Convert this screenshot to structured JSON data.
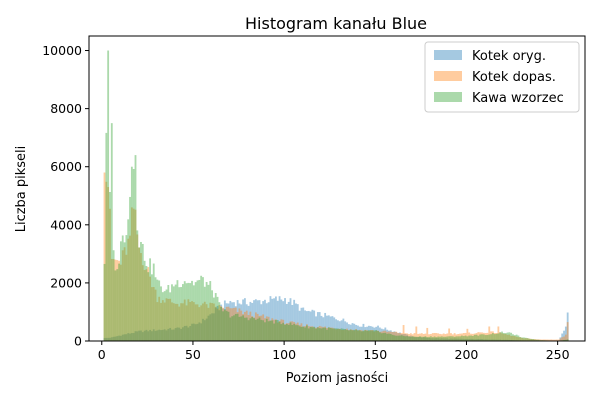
{
  "chart_data": {
    "type": "bar",
    "title": "Histogram kanału Blue",
    "xlabel": "Poziom jasności",
    "ylabel": "Liczba pikseli",
    "xlim": [
      -7,
      265
    ],
    "ylim": [
      0,
      10500
    ],
    "x_ticks": [
      0,
      50,
      100,
      150,
      200,
      250
    ],
    "y_ticks": [
      0,
      2000,
      4000,
      6000,
      8000,
      10000
    ],
    "legend_position": "top-right",
    "grid": false,
    "bins": 256,
    "series": [
      {
        "name": "Kotek oryg.",
        "color": "#1f77b4",
        "opacity": 0.4,
        "anchors": [
          [
            0,
            0
          ],
          [
            1,
            100
          ],
          [
            5,
            120
          ],
          [
            10,
            200
          ],
          [
            20,
            330
          ],
          [
            30,
            380
          ],
          [
            40,
            420
          ],
          [
            50,
            550
          ],
          [
            55,
            700
          ],
          [
            60,
            950
          ],
          [
            65,
            1200
          ],
          [
            70,
            1350
          ],
          [
            80,
            1330
          ],
          [
            90,
            1400
          ],
          [
            100,
            1450
          ],
          [
            105,
            1300
          ],
          [
            110,
            1050
          ],
          [
            120,
            900
          ],
          [
            130,
            750
          ],
          [
            140,
            550
          ],
          [
            150,
            500
          ],
          [
            155,
            420
          ],
          [
            160,
            330
          ],
          [
            170,
            150
          ],
          [
            180,
            100
          ],
          [
            190,
            80
          ],
          [
            200,
            70
          ],
          [
            210,
            60
          ],
          [
            220,
            40
          ],
          [
            230,
            20
          ],
          [
            240,
            10
          ],
          [
            250,
            15
          ],
          [
            254,
            500
          ],
          [
            255,
            1000
          ]
        ]
      },
      {
        "name": "Kotek dopas.",
        "color": "#ff7f0e",
        "opacity": 0.4,
        "anchors": [
          [
            0,
            0
          ],
          [
            1,
            5800
          ],
          [
            3,
            5500
          ],
          [
            5,
            2800
          ],
          [
            10,
            2700
          ],
          [
            15,
            3500
          ],
          [
            17,
            4600
          ],
          [
            20,
            3200
          ],
          [
            30,
            1500
          ],
          [
            40,
            1300
          ],
          [
            50,
            1300
          ],
          [
            60,
            1200
          ],
          [
            70,
            1100
          ],
          [
            80,
            950
          ],
          [
            90,
            800
          ],
          [
            100,
            650
          ],
          [
            110,
            550
          ],
          [
            120,
            480
          ],
          [
            130,
            430
          ],
          [
            140,
            380
          ],
          [
            150,
            350
          ],
          [
            160,
            300
          ],
          [
            170,
            250
          ],
          [
            180,
            250
          ],
          [
            190,
            250
          ],
          [
            200,
            260
          ],
          [
            210,
            300
          ],
          [
            215,
            300
          ],
          [
            220,
            250
          ],
          [
            230,
            100
          ],
          [
            240,
            50
          ],
          [
            250,
            50
          ],
          [
            254,
            200
          ],
          [
            255,
            650
          ]
        ]
      },
      {
        "name": "Kawa wzorzec",
        "color": "#2ca02c",
        "opacity": 0.4,
        "anchors": [
          [
            0,
            0
          ],
          [
            1,
            2700
          ],
          [
            2,
            7500
          ],
          [
            3,
            10000
          ],
          [
            4,
            5000
          ],
          [
            5,
            4000
          ],
          [
            6,
            3000
          ],
          [
            8,
            2300
          ],
          [
            10,
            3600
          ],
          [
            12,
            3300
          ],
          [
            15,
            5300
          ],
          [
            17,
            6000
          ],
          [
            18,
            5000
          ],
          [
            20,
            3500
          ],
          [
            25,
            2600
          ],
          [
            28,
            2500
          ],
          [
            30,
            2000
          ],
          [
            35,
            1700
          ],
          [
            40,
            2000
          ],
          [
            45,
            2100
          ],
          [
            50,
            2000
          ],
          [
            55,
            2100
          ],
          [
            60,
            1800
          ],
          [
            65,
            1100
          ],
          [
            70,
            900
          ],
          [
            80,
            800
          ],
          [
            90,
            700
          ],
          [
            100,
            620
          ],
          [
            110,
            500
          ],
          [
            120,
            450
          ],
          [
            130,
            400
          ],
          [
            140,
            350
          ],
          [
            150,
            340
          ],
          [
            160,
            200
          ],
          [
            170,
            150
          ],
          [
            180,
            150
          ],
          [
            190,
            150
          ],
          [
            200,
            180
          ],
          [
            210,
            220
          ],
          [
            220,
            300
          ],
          [
            225,
            250
          ],
          [
            230,
            120
          ],
          [
            240,
            30
          ],
          [
            250,
            10
          ],
          [
            255,
            50
          ]
        ]
      }
    ],
    "spikes": {
      "Kotek dopas.": [
        [
          1,
          5800
        ],
        [
          16,
          4600
        ],
        [
          165,
          550
        ],
        [
          172,
          500
        ],
        [
          178,
          450
        ],
        [
          190,
          430
        ],
        [
          200,
          420
        ],
        [
          212,
          500
        ],
        [
          217,
          500
        ],
        [
          255,
          650
        ]
      ],
      "Kawa wzorzec": [
        [
          3,
          10000
        ],
        [
          5,
          7500
        ],
        [
          16,
          6000
        ],
        [
          18,
          6400
        ]
      ]
    }
  }
}
